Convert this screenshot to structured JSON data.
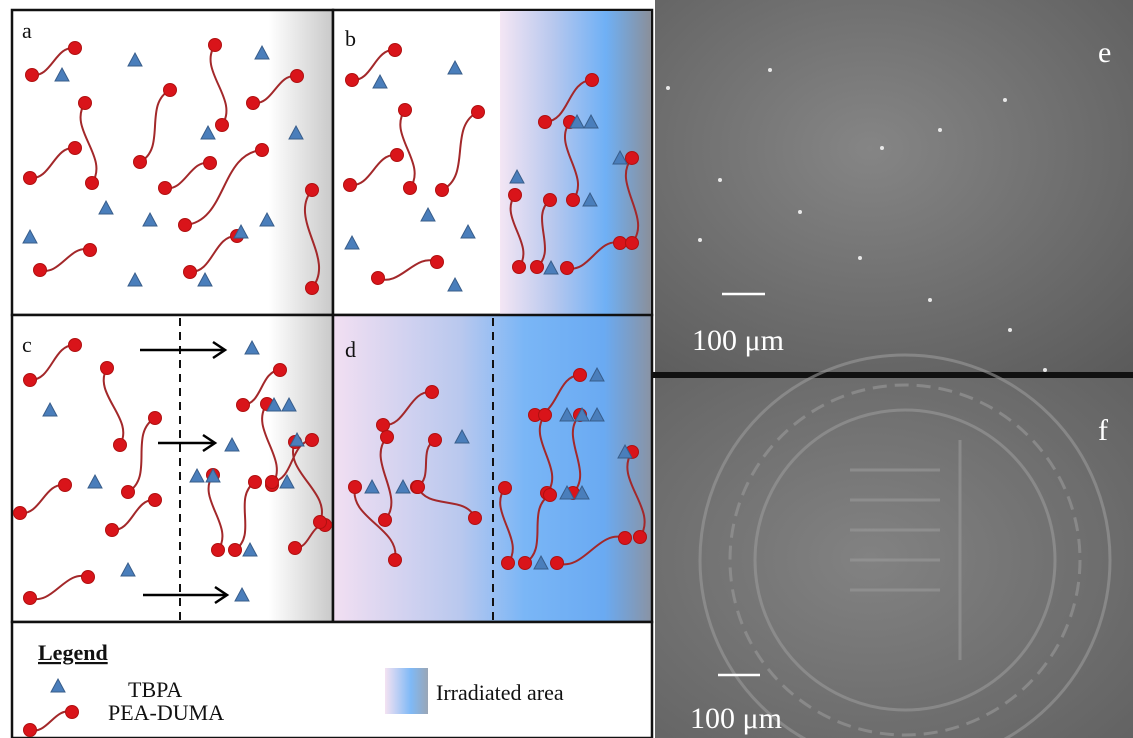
{
  "panels": {
    "a": {
      "label": "a"
    },
    "b": {
      "label": "b"
    },
    "c": {
      "label": "c"
    },
    "d": {
      "label": "d"
    },
    "e": {
      "label": "e",
      "scale_bar": "100 μm"
    },
    "f": {
      "label": "f",
      "scale_bar": "100 μm"
    }
  },
  "legend": {
    "title": "Legend",
    "items": [
      "TBPA",
      "PEA-DUMA",
      "Irradiated area"
    ]
  }
}
